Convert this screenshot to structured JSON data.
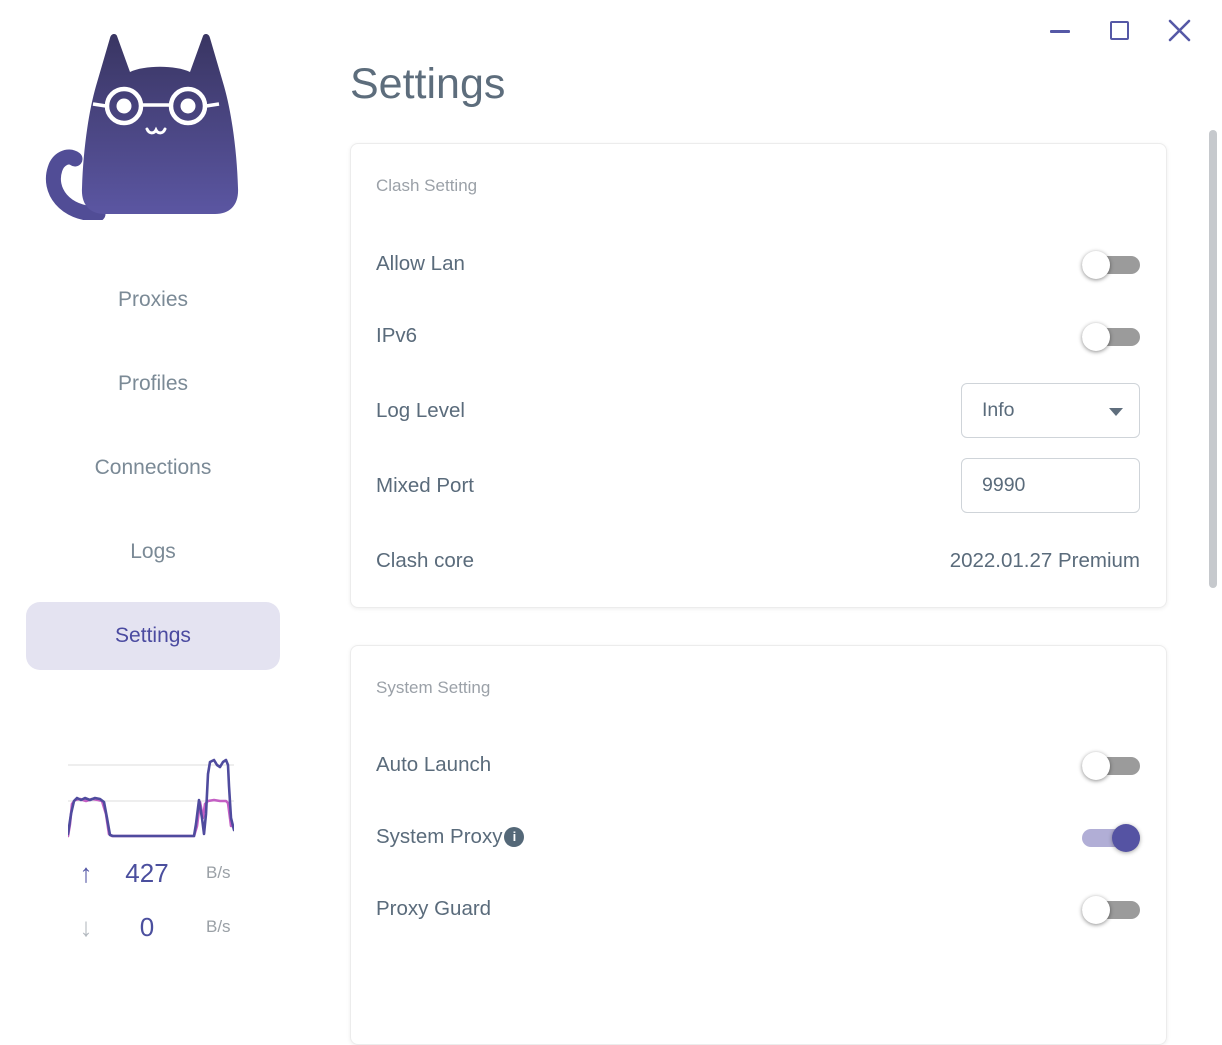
{
  "colors": {
    "accent": "#5553a3",
    "accent_light_track": "#b1aed6",
    "toggle_off_track": "#9b9b9b",
    "nav_text": "#7b8a96",
    "nav_active_text": "#4a4aa0",
    "nav_active_bg": "#e4e3f1",
    "title_text": "#5d6d7c",
    "label_text": "#5a6b7b",
    "muted_text": "#9ba1a8",
    "window_control": "#5558a6",
    "graph_upload_line": "#4f4b9e",
    "graph_download_line": "#c45fc4"
  },
  "window": {
    "controls": [
      {
        "name": "minimize"
      },
      {
        "name": "maximize"
      },
      {
        "name": "close"
      }
    ]
  },
  "sidebar": {
    "logo": "clash-cat-logo",
    "nav": [
      {
        "label": "Proxies",
        "active": false
      },
      {
        "label": "Profiles",
        "active": false
      },
      {
        "label": "Connections",
        "active": false
      },
      {
        "label": "Logs",
        "active": false
      },
      {
        "label": "Settings",
        "active": true
      }
    ],
    "traffic": {
      "up_value": "427",
      "up_unit": "B/s",
      "down_value": "0",
      "down_unit": "B/s",
      "graph": {
        "width": 166,
        "height": 82,
        "gridlines_y": [
          9,
          45
        ],
        "gridline_color": "#e9e9e9",
        "series": [
          {
            "name": "download",
            "color": "#c45fc4",
            "points": [
              [
                0,
                80
              ],
              [
                2,
                68
              ],
              [
                4,
                48
              ],
              [
                7,
                44
              ],
              [
                12,
                43
              ],
              [
                18,
                45
              ],
              [
                24,
                43
              ],
              [
                30,
                44
              ],
              [
                34,
                45
              ],
              [
                38,
                58
              ],
              [
                41,
                78
              ],
              [
                44,
                80
              ],
              [
                126,
                80
              ],
              [
                129,
                70
              ],
              [
                132,
                46
              ],
              [
                135,
                62
              ],
              [
                137,
                48
              ],
              [
                140,
                45
              ],
              [
                146,
                44
              ],
              [
                152,
                45
              ],
              [
                158,
                45
              ],
              [
                160,
                47
              ],
              [
                162,
                62
              ],
              [
                163,
                70
              ],
              [
                166,
                70
              ]
            ]
          },
          {
            "name": "upload",
            "color": "#4f4b9e",
            "points": [
              [
                0,
                78
              ],
              [
                3,
                58
              ],
              [
                6,
                45
              ],
              [
                9,
                42
              ],
              [
                13,
                44
              ],
              [
                17,
                42
              ],
              [
                22,
                44
              ],
              [
                27,
                42
              ],
              [
                32,
                43
              ],
              [
                36,
                46
              ],
              [
                39,
                62
              ],
              [
                42,
                79
              ],
              [
                45,
                80
              ],
              [
                126,
                80
              ],
              [
                128,
                68
              ],
              [
                131,
                44
              ],
              [
                134,
                62
              ],
              [
                136,
                78
              ],
              [
                138,
                58
              ],
              [
                140,
                18
              ],
              [
                142,
                6
              ],
              [
                146,
                4
              ],
              [
                149,
                9
              ],
              [
                152,
                11
              ],
              [
                155,
                6
              ],
              [
                158,
                4
              ],
              [
                160,
                9
              ],
              [
                161,
                30
              ],
              [
                163,
                62
              ],
              [
                166,
                74
              ]
            ]
          }
        ]
      }
    }
  },
  "main": {
    "title": "Settings",
    "clash_card": {
      "header": "Clash Setting",
      "rows": {
        "allow_lan": {
          "label": "Allow Lan",
          "toggle": "off"
        },
        "ipv6": {
          "label": "IPv6",
          "toggle": "off"
        },
        "log_level": {
          "label": "Log Level",
          "value": "Info"
        },
        "mixed_port": {
          "label": "Mixed Port",
          "value": "9990"
        },
        "clash_core": {
          "label": "Clash core",
          "value": "2022.01.27 Premium"
        }
      }
    },
    "system_card": {
      "header": "System Setting",
      "rows": {
        "auto_launch": {
          "label": "Auto Launch",
          "toggle": "off"
        },
        "system_proxy": {
          "label": "System Proxy",
          "toggle": "on",
          "info_icon": "i"
        },
        "proxy_guard": {
          "label": "Proxy Guard",
          "toggle": "off"
        }
      }
    }
  }
}
